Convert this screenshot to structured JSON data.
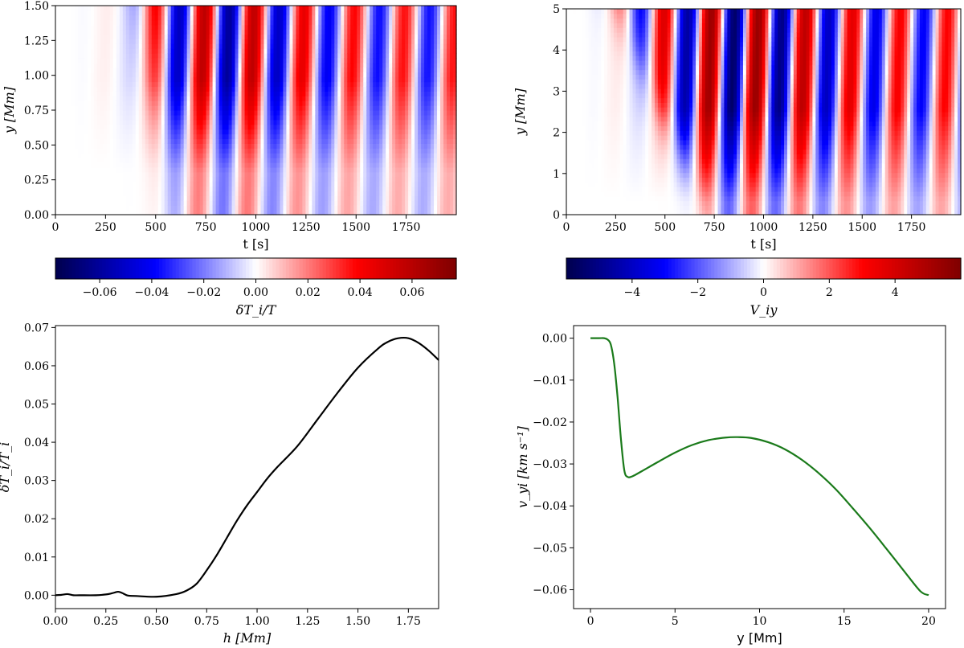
{
  "chart_data": [
    {
      "type": "heatmap",
      "name": "temperature-perturbation-map",
      "xlabel": "t [s]",
      "ylabel": "y [Mm]",
      "xlim": [
        0,
        2000
      ],
      "ylim": [
        0,
        1.5
      ],
      "xticks": [
        0,
        250,
        500,
        750,
        1000,
        1250,
        1500,
        1750
      ],
      "yticks": [
        0.0,
        0.25,
        0.5,
        0.75,
        1.0,
        1.25,
        1.5
      ],
      "ytick_labels": [
        "0.00",
        "0.25",
        "0.50",
        "0.75",
        "1.00",
        "1.25",
        "1.50"
      ],
      "colormap": "seismic",
      "colorbar": {
        "label": "δT_i/T",
        "range": [
          -0.077,
          0.077
        ],
        "ticks": [
          -0.06,
          -0.04,
          -0.02,
          0.0,
          0.02,
          0.04,
          0.06
        ],
        "tick_labels": [
          "−0.06",
          "−0.04",
          "−0.02",
          "0.00",
          "0.02",
          "0.04",
          "0.06"
        ]
      },
      "wave": {
        "period_s": 250,
        "front_start_s": 420,
        "front_end_s": 560,
        "front_top_y": 1.5,
        "front_bottom_y": 0.55,
        "amplitude": 0.065
      }
    },
    {
      "type": "heatmap",
      "name": "velocity-map",
      "xlabel": "t [s]",
      "ylabel": "y [Mm]",
      "xlim": [
        0,
        2000
      ],
      "ylim": [
        0,
        5
      ],
      "xticks": [
        0,
        250,
        500,
        750,
        1000,
        1250,
        1500,
        1750
      ],
      "yticks": [
        0,
        1,
        2,
        3,
        4,
        5
      ],
      "ytick_labels": [
        "0",
        "1",
        "2",
        "3",
        "4",
        "5"
      ],
      "colormap": "seismic",
      "colorbar": {
        "label": "V_iy",
        "range": [
          -6,
          6
        ],
        "ticks": [
          -4,
          -2,
          0,
          2,
          4
        ],
        "tick_labels": [
          "−4",
          "−2",
          "0",
          "2",
          "4"
        ]
      },
      "wave": {
        "period_s": 240,
        "front_start_s": 260,
        "front_end_s": 700,
        "front_top_y": 5,
        "front_bottom_y": 0.6,
        "amplitude": 5.5
      }
    },
    {
      "type": "line",
      "name": "temperature-profile",
      "xlabel": "h [Mm]",
      "ylabel": "δT_i/T_i",
      "xlim": [
        0,
        1.9
      ],
      "ylim": [
        -0.0035,
        0.0705
      ],
      "xticks": [
        0,
        0.25,
        0.5,
        0.75,
        1.0,
        1.25,
        1.5,
        1.75
      ],
      "xtick_labels": [
        "0.00",
        "0.25",
        "0.50",
        "0.75",
        "1.00",
        "1.25",
        "1.50",
        "1.75"
      ],
      "yticks": [
        0.0,
        0.01,
        0.02,
        0.03,
        0.04,
        0.05,
        0.06,
        0.07
      ],
      "ytick_labels": [
        "0.00",
        "0.01",
        "0.02",
        "0.03",
        "0.04",
        "0.05",
        "0.06",
        "0.07"
      ],
      "color": "#000000",
      "x": [
        0,
        0.03,
        0.06,
        0.09,
        0.12,
        0.2,
        0.25,
        0.28,
        0.31,
        0.33,
        0.36,
        0.4,
        0.5,
        0.6,
        0.65,
        0.7,
        0.75,
        0.8,
        0.85,
        0.9,
        0.95,
        1.0,
        1.05,
        1.1,
        1.2,
        1.3,
        1.4,
        1.5,
        1.6,
        1.65,
        1.7,
        1.75,
        1.8,
        1.85,
        1.9
      ],
      "y": [
        0.0,
        0.0001,
        0.0003,
        0.0,
        0.0,
        0.0,
        0.0002,
        0.0005,
        0.0009,
        0.0006,
        -0.0001,
        -0.0002,
        -0.0004,
        0.0003,
        0.0012,
        0.003,
        0.0065,
        0.0105,
        0.015,
        0.0195,
        0.0235,
        0.027,
        0.0305,
        0.0335,
        0.039,
        0.046,
        0.053,
        0.0595,
        0.0645,
        0.0663,
        0.0672,
        0.0672,
        0.066,
        0.064,
        0.0615
      ]
    },
    {
      "type": "line",
      "name": "velocity-profile",
      "xlabel": "y [Mm]",
      "ylabel": "v_yi [km s⁻¹]",
      "xlim": [
        -1,
        21
      ],
      "ylim": [
        -0.0645,
        0.003
      ],
      "xticks": [
        0,
        5,
        10,
        15,
        20
      ],
      "xtick_labels": [
        "0",
        "5",
        "10",
        "15",
        "20"
      ],
      "yticks": [
        0.0,
        -0.01,
        -0.02,
        -0.03,
        -0.04,
        -0.05,
        -0.06
      ],
      "ytick_labels": [
        "0.00",
        "−0.01",
        "−0.02",
        "−0.03",
        "−0.04",
        "−0.05",
        "−0.06"
      ],
      "color": "#1a7a1a",
      "x": [
        0,
        0.5,
        0.8,
        1.0,
        1.2,
        1.4,
        1.6,
        1.8,
        2.0,
        2.2,
        2.5,
        3.0,
        4.0,
        5.0,
        6.0,
        7.0,
        8.0,
        8.7,
        9.5,
        10.5,
        11.5,
        12.5,
        13.5,
        14.5,
        15.5,
        16.5,
        17.5,
        18.5,
        19.5,
        20.0
      ],
      "y": [
        0.0,
        0.0,
        0.0,
        -0.0003,
        -0.0015,
        -0.006,
        -0.014,
        -0.024,
        -0.0315,
        -0.0331,
        -0.0329,
        -0.0318,
        -0.0295,
        -0.0273,
        -0.0255,
        -0.0243,
        -0.0237,
        -0.0236,
        -0.0238,
        -0.0248,
        -0.0265,
        -0.029,
        -0.0322,
        -0.036,
        -0.0405,
        -0.0452,
        -0.0502,
        -0.0553,
        -0.0603,
        -0.0613
      ]
    }
  ]
}
